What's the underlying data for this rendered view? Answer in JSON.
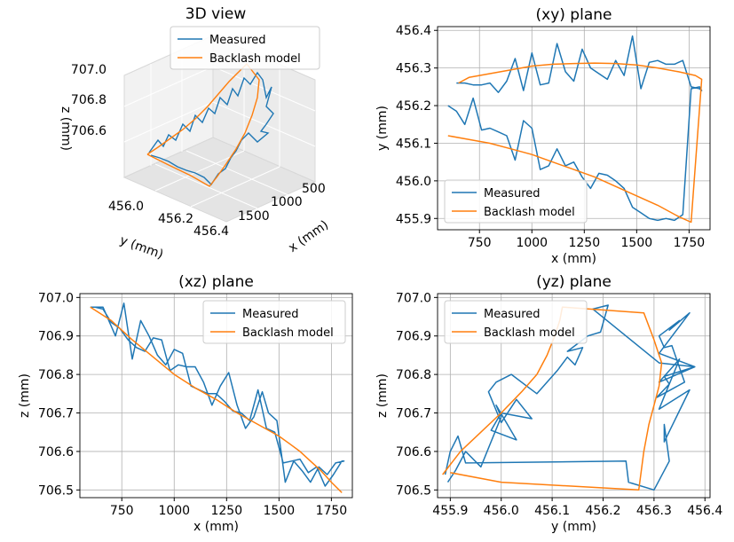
{
  "colors": {
    "measured": "#1f77b4",
    "model": "#ff7f0e"
  },
  "chart_data": [
    {
      "id": "view3d",
      "type": "line",
      "title": "3D view",
      "xlabel": "x (mm)",
      "ylabel": "y (mm)",
      "zlabel": "z (mm)",
      "xticks": [
        "500",
        "1000",
        "1500"
      ],
      "yticks": [
        "456.0",
        "456.2",
        "456.4"
      ],
      "zticks": [
        "707.0",
        "706.8",
        "706.6"
      ],
      "legend": [
        "Measured",
        "Backlash model"
      ],
      "legend_position": "top-right"
    },
    {
      "id": "xy",
      "type": "line",
      "title": "(xy) plane",
      "xlabel": "x (mm)",
      "ylabel": "y (mm)",
      "xlim": [
        550,
        1850
      ],
      "ylim": [
        455.87,
        456.41
      ],
      "xticks": [
        750,
        1000,
        1250,
        1500,
        1750
      ],
      "yticks": [
        455.9,
        456.0,
        456.1,
        456.2,
        456.3,
        456.4
      ],
      "legend_position": "lower-left",
      "series": [
        {
          "name": "Measured",
          "x": [
            600,
            640,
            680,
            720,
            760,
            800,
            840,
            880,
            920,
            960,
            1000,
            1040,
            1080,
            1120,
            1160,
            1200,
            1240,
            1280,
            1320,
            1360,
            1400,
            1440,
            1480,
            1520,
            1560,
            1600,
            1640,
            1680,
            1720,
            1760,
            1800,
            1810,
            1800,
            1760,
            1720,
            1680,
            1640,
            1600,
            1560,
            1520,
            1480,
            1440,
            1400,
            1360,
            1320,
            1280,
            1240,
            1200,
            1160,
            1120,
            1080,
            1040,
            1000,
            960,
            920,
            880,
            840,
            800,
            760,
            720,
            680,
            640
          ],
          "y": [
            456.2,
            456.185,
            456.15,
            456.22,
            456.135,
            456.14,
            456.13,
            456.12,
            456.055,
            456.16,
            456.14,
            456.03,
            456.04,
            456.085,
            456.04,
            456.05,
            456.01,
            455.98,
            456.02,
            456.015,
            456.0,
            455.98,
            455.93,
            455.915,
            455.9,
            455.895,
            455.9,
            455.895,
            455.91,
            456.245,
            456.25,
            456.24,
            456.245,
            456.25,
            456.32,
            456.31,
            456.31,
            456.32,
            456.315,
            456.245,
            456.385,
            456.28,
            456.32,
            456.27,
            456.285,
            456.3,
            456.35,
            456.265,
            456.29,
            456.365,
            456.26,
            456.255,
            456.34,
            456.24,
            456.325,
            456.265,
            456.235,
            456.26,
            456.255,
            456.255,
            456.26,
            456.26
          ]
        },
        {
          "name": "Backlash model",
          "x": [
            600,
            700,
            800,
            900,
            1000,
            1100,
            1200,
            1300,
            1400,
            1500,
            1600,
            1700,
            1760,
            1810,
            1780,
            1700,
            1600,
            1500,
            1400,
            1300,
            1200,
            1100,
            1000,
            900,
            800,
            700,
            650
          ],
          "y": [
            456.12,
            456.11,
            456.1,
            456.085,
            456.07,
            456.05,
            456.03,
            456.01,
            455.985,
            455.96,
            455.935,
            455.905,
            455.89,
            456.27,
            456.28,
            456.29,
            456.3,
            456.308,
            456.312,
            456.313,
            456.312,
            456.31,
            456.305,
            456.295,
            456.285,
            456.275,
            456.26
          ]
        }
      ]
    },
    {
      "id": "xz",
      "type": "line",
      "title": "(xz) plane",
      "xlabel": "x (mm)",
      "ylabel": "z (mm)",
      "xlim": [
        550,
        1850
      ],
      "ylim": [
        706.48,
        707.01
      ],
      "xticks": [
        750,
        1000,
        1250,
        1500,
        1750
      ],
      "yticks": [
        706.5,
        706.6,
        706.7,
        706.8,
        706.9,
        707.0
      ],
      "legend_position": "top-right",
      "series": [
        {
          "name": "Measured",
          "x": [
            600,
            660,
            720,
            760,
            800,
            840,
            880,
            920,
            960,
            1000,
            1040,
            1080,
            1120,
            1160,
            1200,
            1240,
            1280,
            1320,
            1360,
            1400,
            1440,
            1480,
            1520,
            1560,
            1600,
            1640,
            1680,
            1720,
            1760,
            1800,
            1810,
            1770,
            1730,
            1690,
            1650,
            1610,
            1570,
            1530,
            1490,
            1450,
            1420,
            1380,
            1340,
            1300,
            1260,
            1220,
            1180,
            1140,
            1100,
            1060,
            1020,
            980,
            940,
            900,
            860,
            820,
            780,
            740,
            700,
            660,
            620
          ],
          "y": [
            706.975,
            706.975,
            706.9,
            706.985,
            706.84,
            706.94,
            706.9,
            706.85,
            706.825,
            706.865,
            706.855,
            706.77,
            706.76,
            706.75,
            706.75,
            706.73,
            706.705,
            706.7,
            706.68,
            706.76,
            706.66,
            706.65,
            706.57,
            706.575,
            706.58,
            706.545,
            706.56,
            706.51,
            706.54,
            706.575,
            706.575,
            706.57,
            706.54,
            706.56,
            706.52,
            706.55,
            706.575,
            706.52,
            706.68,
            706.7,
            706.755,
            706.69,
            706.66,
            706.72,
            706.805,
            706.77,
            706.72,
            706.78,
            706.82,
            706.82,
            706.825,
            706.81,
            706.89,
            706.895,
            706.86,
            706.87,
            706.89,
            706.92,
            706.935,
            706.97,
            706.975
          ]
        },
        {
          "name": "Backlash model",
          "x": [
            600,
            700,
            800,
            900,
            1000,
            1100,
            1200,
            1300,
            1400,
            1500,
            1550,
            1600,
            1650,
            1700,
            1750,
            1800
          ],
          "y": [
            706.975,
            706.94,
            706.89,
            706.845,
            706.8,
            706.765,
            706.735,
            706.7,
            706.67,
            706.64,
            706.62,
            706.6,
            706.575,
            706.55,
            706.52,
            706.493
          ]
        }
      ]
    },
    {
      "id": "yz",
      "type": "line",
      "title": "(yz) plane",
      "xlabel": "y (mm)",
      "ylabel": "z (mm)",
      "xlim": [
        455.875,
        456.41
      ],
      "ylim": [
        706.48,
        707.01
      ],
      "xticks": [
        455.9,
        456.0,
        456.1,
        456.2,
        456.3,
        456.4
      ],
      "yticks": [
        706.5,
        706.6,
        706.7,
        706.8,
        706.9,
        707.0
      ],
      "legend_position": "top-left",
      "series": [
        {
          "name": "Measured",
          "x": [
            455.89,
            455.9,
            455.915,
            455.93,
            456.245,
            456.25,
            456.3,
            456.33,
            456.32,
            456.32,
            456.37,
            456.31,
            456.35,
            456.31,
            456.38,
            456.31,
            456.37,
            456.33,
            456.35,
            456.31,
            456.32,
            456.335,
            456.36,
            456.305,
            456.33,
            456.32,
            456.38,
            456.31,
            456.18,
            456.21,
            456.195,
            456.17,
            456.13,
            456.16,
            456.145,
            456.13,
            456.11,
            456.07,
            456.05,
            456.02,
            455.99,
            455.975,
            456.0,
            456.03,
            456.06,
            456.0,
            455.98,
            456.03,
            455.99,
            456.0,
            455.96,
            455.93,
            455.91,
            455.895
          ],
          "y": [
            706.54,
            706.6,
            706.64,
            706.57,
            706.575,
            706.52,
            706.5,
            706.575,
            706.67,
            706.625,
            706.76,
            706.71,
            706.84,
            706.78,
            706.82,
            706.855,
            706.96,
            706.915,
            706.94,
            706.9,
            706.87,
            706.875,
            706.78,
            706.74,
            706.775,
            706.795,
            706.82,
            706.83,
            706.97,
            706.98,
            706.91,
            706.9,
            706.86,
            706.87,
            706.825,
            706.845,
            706.81,
            706.75,
            706.77,
            706.8,
            706.78,
            706.755,
            706.675,
            706.735,
            706.685,
            706.7,
            706.655,
            706.63,
            706.72,
            706.69,
            706.56,
            706.6,
            706.55,
            706.52
          ]
        },
        {
          "name": "Backlash model",
          "x": [
            455.885,
            455.92,
            455.96,
            456.0,
            456.04,
            456.07,
            456.09,
            456.105,
            456.115,
            456.12,
            456.28,
            456.3,
            456.315,
            456.31,
            456.3,
            456.29,
            456.28,
            456.27,
            456.0,
            455.9
          ],
          "y": [
            706.54,
            706.6,
            706.65,
            706.7,
            706.755,
            706.8,
            706.85,
            706.9,
            706.94,
            706.975,
            706.96,
            706.89,
            706.83,
            706.77,
            706.72,
            706.67,
            706.6,
            706.5,
            706.52,
            706.545
          ]
        }
      ]
    }
  ]
}
